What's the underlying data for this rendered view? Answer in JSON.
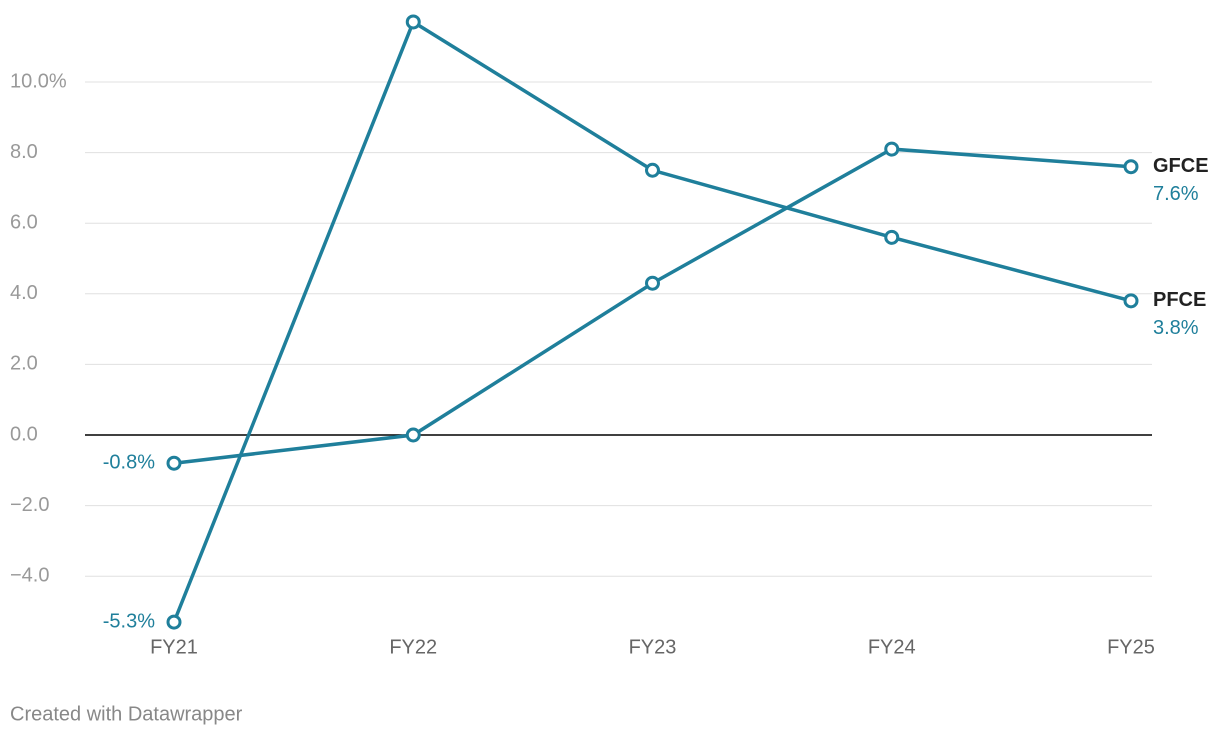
{
  "chart_data": {
    "type": "line",
    "categories": [
      "FY21",
      "FY22",
      "FY23",
      "FY24",
      "FY25"
    ],
    "series": [
      {
        "name": "PFCE",
        "color": "#1f7f9b",
        "values": [
          -5.3,
          11.7,
          7.5,
          5.6,
          3.8
        ],
        "value_labels": [
          "-5.3%",
          null,
          null,
          null,
          "3.8%"
        ]
      },
      {
        "name": "GFCE",
        "color": "#1f7f9b",
        "values": [
          -0.8,
          0.0,
          4.3,
          8.1,
          7.6
        ],
        "value_labels": [
          "-0.8%",
          null,
          null,
          null,
          "7.6%"
        ]
      }
    ],
    "ylim": [
      -5.5,
      12
    ],
    "yticks": [
      {
        "value": -4,
        "label": "−4.0"
      },
      {
        "value": -2,
        "label": "−2.0"
      },
      {
        "value": 0,
        "label": "0.0"
      },
      {
        "value": 2,
        "label": "2.0"
      },
      {
        "value": 4,
        "label": "4.0"
      },
      {
        "value": 6,
        "label": "6.0"
      },
      {
        "value": 8,
        "label": "8.0"
      },
      {
        "value": 10,
        "label": "10.0%"
      }
    ],
    "grid": true,
    "footer": "Created with Datawrapper"
  }
}
